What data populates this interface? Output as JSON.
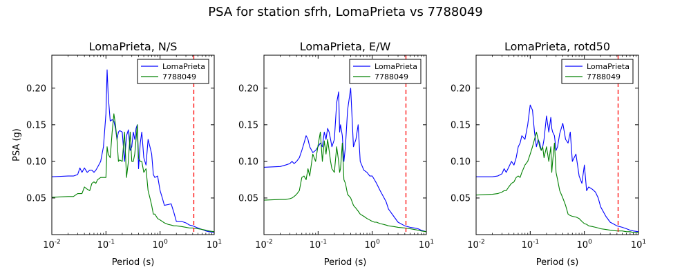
{
  "figure": {
    "title": "PSA for station sfrh, LomaPrieta vs 7788049"
  },
  "chart_data": [
    {
      "type": "line",
      "title": "LomaPrieta, N/S",
      "xlabel": "Period (s)",
      "ylabel": "PSA (g)",
      "xscale": "log",
      "xlim": [
        0.01,
        10
      ],
      "ylim": [
        0.0,
        0.245
      ],
      "yticks": [
        "0.05",
        "0.10",
        "0.15",
        "0.20"
      ],
      "xticks": [
        {
          "base": "10",
          "exp": "-2"
        },
        {
          "base": "10",
          "exp": "-1"
        },
        {
          "base": "10",
          "exp": "0"
        },
        {
          "base": "10",
          "exp": "1"
        }
      ],
      "vline": 4.2,
      "legend_position": "top-right",
      "series": [
        {
          "name": "LomaPrieta",
          "color": "#0000ff",
          "x": [
            0.01,
            0.02,
            0.025,
            0.03,
            0.033,
            0.036,
            0.04,
            0.045,
            0.05,
            0.055,
            0.06,
            0.065,
            0.07,
            0.08,
            0.09,
            0.1,
            0.105,
            0.11,
            0.12,
            0.13,
            0.14,
            0.15,
            0.16,
            0.17,
            0.18,
            0.2,
            0.22,
            0.24,
            0.26,
            0.28,
            0.3,
            0.32,
            0.34,
            0.36,
            0.38,
            0.4,
            0.43,
            0.46,
            0.5,
            0.55,
            0.6,
            0.65,
            0.7,
            0.75,
            0.8,
            0.9,
            1.0,
            1.1,
            1.2,
            1.4,
            1.6,
            1.8,
            2.0,
            2.5,
            3.0,
            3.5,
            4.0,
            5.0,
            6.0,
            7.0,
            8.0,
            10.0
          ],
          "y": [
            0.079,
            0.08,
            0.08,
            0.082,
            0.091,
            0.085,
            0.091,
            0.085,
            0.088,
            0.088,
            0.085,
            0.088,
            0.092,
            0.1,
            0.12,
            0.165,
            0.225,
            0.19,
            0.155,
            0.157,
            0.155,
            0.145,
            0.13,
            0.14,
            0.142,
            0.14,
            0.1,
            0.135,
            0.143,
            0.115,
            0.12,
            0.14,
            0.13,
            0.145,
            0.15,
            0.09,
            0.125,
            0.14,
            0.105,
            0.095,
            0.13,
            0.12,
            0.11,
            0.082,
            0.078,
            0.08,
            0.06,
            0.05,
            0.04,
            0.041,
            0.042,
            0.03,
            0.018,
            0.018,
            0.016,
            0.013,
            0.012,
            0.009,
            0.007,
            0.005,
            0.004,
            0.003
          ]
        },
        {
          "name": "7788049",
          "color": "#008000",
          "x": [
            0.01,
            0.02,
            0.025,
            0.03,
            0.033,
            0.036,
            0.04,
            0.045,
            0.05,
            0.055,
            0.06,
            0.065,
            0.07,
            0.08,
            0.09,
            0.1,
            0.105,
            0.11,
            0.12,
            0.13,
            0.14,
            0.15,
            0.16,
            0.17,
            0.18,
            0.2,
            0.22,
            0.24,
            0.26,
            0.28,
            0.3,
            0.32,
            0.34,
            0.36,
            0.38,
            0.4,
            0.43,
            0.46,
            0.5,
            0.55,
            0.6,
            0.65,
            0.7,
            0.75,
            0.8,
            0.9,
            1.0,
            1.1,
            1.2,
            1.4,
            1.6,
            1.8,
            2.0,
            2.5,
            3.0,
            3.5,
            4.0,
            5.0,
            6.0,
            7.0,
            8.0,
            10.0
          ],
          "y": [
            0.051,
            0.052,
            0.052,
            0.056,
            0.056,
            0.056,
            0.065,
            0.062,
            0.06,
            0.07,
            0.072,
            0.07,
            0.075,
            0.078,
            0.078,
            0.078,
            0.12,
            0.11,
            0.105,
            0.14,
            0.165,
            0.15,
            0.13,
            0.1,
            0.102,
            0.1,
            0.14,
            0.078,
            0.1,
            0.14,
            0.1,
            0.1,
            0.11,
            0.13,
            0.15,
            0.105,
            0.1,
            0.1,
            0.085,
            0.09,
            0.06,
            0.05,
            0.04,
            0.028,
            0.028,
            0.022,
            0.02,
            0.018,
            0.016,
            0.014,
            0.013,
            0.012,
            0.012,
            0.011,
            0.01,
            0.009,
            0.009,
            0.008,
            0.007,
            0.006,
            0.005,
            0.004
          ]
        }
      ]
    },
    {
      "type": "line",
      "title": "LomaPrieta, E/W",
      "xlabel": "Period (s)",
      "ylabel": "",
      "xscale": "log",
      "xlim": [
        0.01,
        10
      ],
      "ylim": [
        0.0,
        0.245
      ],
      "yticks": [
        "0.05",
        "0.10",
        "0.15",
        "0.20"
      ],
      "xticks": [
        {
          "base": "10",
          "exp": "-2"
        },
        {
          "base": "10",
          "exp": "-1"
        },
        {
          "base": "10",
          "exp": "0"
        },
        {
          "base": "10",
          "exp": "1"
        }
      ],
      "vline": 4.2,
      "legend_position": "top-right",
      "series": [
        {
          "name": "LomaPrieta",
          "color": "#0000ff",
          "x": [
            0.01,
            0.02,
            0.025,
            0.03,
            0.033,
            0.036,
            0.04,
            0.045,
            0.05,
            0.055,
            0.06,
            0.065,
            0.07,
            0.08,
            0.09,
            0.1,
            0.11,
            0.12,
            0.13,
            0.14,
            0.15,
            0.16,
            0.17,
            0.18,
            0.2,
            0.22,
            0.24,
            0.25,
            0.26,
            0.28,
            0.3,
            0.32,
            0.35,
            0.4,
            0.45,
            0.5,
            0.55,
            0.6,
            0.7,
            0.8,
            0.9,
            1.0,
            1.1,
            1.2,
            1.4,
            1.6,
            1.8,
            2.0,
            2.5,
            3.0,
            4.0,
            5.0,
            6.0,
            7.0,
            8.0,
            10.0
          ],
          "y": [
            0.092,
            0.093,
            0.095,
            0.097,
            0.1,
            0.097,
            0.1,
            0.105,
            0.115,
            0.125,
            0.135,
            0.13,
            0.12,
            0.112,
            0.115,
            0.12,
            0.125,
            0.12,
            0.14,
            0.13,
            0.145,
            0.14,
            0.13,
            0.12,
            0.13,
            0.18,
            0.195,
            0.14,
            0.15,
            0.135,
            0.1,
            0.12,
            0.17,
            0.2,
            0.12,
            0.13,
            0.15,
            0.1,
            0.088,
            0.085,
            0.08,
            0.08,
            0.075,
            0.07,
            0.06,
            0.052,
            0.045,
            0.035,
            0.025,
            0.017,
            0.012,
            0.01,
            0.009,
            0.008,
            0.006,
            0.004
          ]
        },
        {
          "name": "7788049",
          "color": "#008000",
          "x": [
            0.01,
            0.02,
            0.025,
            0.03,
            0.033,
            0.036,
            0.04,
            0.045,
            0.05,
            0.055,
            0.06,
            0.065,
            0.07,
            0.08,
            0.09,
            0.1,
            0.11,
            0.12,
            0.13,
            0.14,
            0.15,
            0.16,
            0.17,
            0.18,
            0.2,
            0.22,
            0.24,
            0.25,
            0.26,
            0.28,
            0.3,
            0.32,
            0.35,
            0.4,
            0.45,
            0.5,
            0.55,
            0.6,
            0.7,
            0.8,
            0.9,
            1.0,
            1.1,
            1.2,
            1.4,
            1.6,
            1.8,
            2.0,
            2.5,
            3.0,
            4.0,
            5.0,
            6.0,
            7.0,
            8.0,
            10.0
          ],
          "y": [
            0.047,
            0.048,
            0.048,
            0.049,
            0.05,
            0.052,
            0.055,
            0.06,
            0.078,
            0.08,
            0.075,
            0.09,
            0.08,
            0.11,
            0.1,
            0.122,
            0.14,
            0.1,
            0.128,
            0.11,
            0.13,
            0.115,
            0.1,
            0.09,
            0.085,
            0.12,
            0.1,
            0.085,
            0.09,
            0.125,
            0.075,
            0.07,
            0.055,
            0.05,
            0.04,
            0.036,
            0.032,
            0.028,
            0.025,
            0.022,
            0.02,
            0.018,
            0.017,
            0.017,
            0.015,
            0.014,
            0.013,
            0.012,
            0.011,
            0.01,
            0.009,
            0.008,
            0.007,
            0.006,
            0.005,
            0.004
          ]
        }
      ]
    },
    {
      "type": "line",
      "title": "LomaPrieta, rotd50",
      "xlabel": "Period (s)",
      "ylabel": "",
      "xscale": "log",
      "xlim": [
        0.01,
        10
      ],
      "ylim": [
        0.0,
        0.245
      ],
      "yticks": [
        "0.05",
        "0.10",
        "0.15",
        "0.20"
      ],
      "xticks": [
        {
          "base": "10",
          "exp": "-2"
        },
        {
          "base": "10",
          "exp": "-1"
        },
        {
          "base": "10",
          "exp": "0"
        },
        {
          "base": "10",
          "exp": "1"
        }
      ],
      "vline": 4.2,
      "legend_position": "top-right",
      "series": [
        {
          "name": "LomaPrieta",
          "color": "#0000ff",
          "x": [
            0.01,
            0.02,
            0.025,
            0.03,
            0.033,
            0.036,
            0.04,
            0.045,
            0.05,
            0.055,
            0.06,
            0.065,
            0.07,
            0.08,
            0.09,
            0.1,
            0.11,
            0.12,
            0.13,
            0.14,
            0.15,
            0.16,
            0.17,
            0.18,
            0.2,
            0.22,
            0.24,
            0.25,
            0.26,
            0.28,
            0.3,
            0.32,
            0.35,
            0.4,
            0.45,
            0.5,
            0.55,
            0.6,
            0.7,
            0.8,
            0.9,
            1.0,
            1.1,
            1.2,
            1.4,
            1.6,
            1.8,
            2.0,
            2.5,
            3.0,
            4.0,
            5.0,
            6.0,
            7.0,
            8.0,
            10.0
          ],
          "y": [
            0.079,
            0.079,
            0.08,
            0.083,
            0.09,
            0.085,
            0.092,
            0.1,
            0.095,
            0.105,
            0.12,
            0.125,
            0.135,
            0.13,
            0.15,
            0.177,
            0.17,
            0.14,
            0.12,
            0.13,
            0.125,
            0.115,
            0.12,
            0.13,
            0.162,
            0.14,
            0.16,
            0.145,
            0.14,
            0.135,
            0.115,
            0.12,
            0.138,
            0.152,
            0.13,
            0.125,
            0.14,
            0.1,
            0.11,
            0.08,
            0.07,
            0.095,
            0.06,
            0.065,
            0.062,
            0.058,
            0.05,
            0.038,
            0.025,
            0.017,
            0.012,
            0.01,
            0.008,
            0.006,
            0.005,
            0.004
          ]
        },
        {
          "name": "7788049",
          "color": "#008000",
          "x": [
            0.01,
            0.02,
            0.025,
            0.03,
            0.033,
            0.036,
            0.04,
            0.045,
            0.05,
            0.055,
            0.06,
            0.065,
            0.07,
            0.08,
            0.09,
            0.1,
            0.11,
            0.12,
            0.13,
            0.14,
            0.15,
            0.16,
            0.17,
            0.18,
            0.2,
            0.22,
            0.24,
            0.25,
            0.26,
            0.28,
            0.3,
            0.32,
            0.35,
            0.4,
            0.45,
            0.5,
            0.55,
            0.6,
            0.7,
            0.8,
            0.9,
            1.0,
            1.1,
            1.2,
            1.4,
            1.6,
            1.8,
            2.0,
            2.5,
            3.0,
            4.0,
            5.0,
            6.0,
            7.0,
            8.0,
            10.0
          ],
          "y": [
            0.054,
            0.055,
            0.056,
            0.058,
            0.06,
            0.06,
            0.065,
            0.07,
            0.072,
            0.078,
            0.08,
            0.078,
            0.085,
            0.095,
            0.1,
            0.11,
            0.12,
            0.13,
            0.14,
            0.13,
            0.12,
            0.115,
            0.12,
            0.105,
            0.12,
            0.1,
            0.12,
            0.085,
            0.1,
            0.125,
            0.085,
            0.075,
            0.06,
            0.05,
            0.04,
            0.028,
            0.026,
            0.025,
            0.024,
            0.022,
            0.018,
            0.015,
            0.014,
            0.012,
            0.011,
            0.01,
            0.009,
            0.008,
            0.007,
            0.006,
            0.005,
            0.005,
            0.004,
            0.004,
            0.003,
            0.003
          ]
        }
      ]
    }
  ]
}
